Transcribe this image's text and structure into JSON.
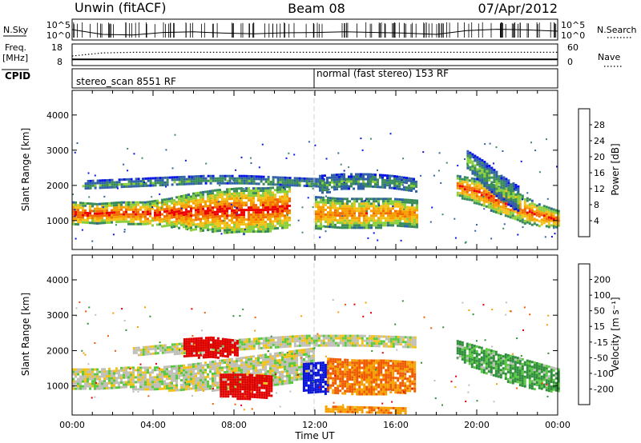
{
  "header": {
    "station": "Unwin (fitACF)",
    "beam": "Beam 08",
    "date": "07/Apr/2012"
  },
  "summary": {
    "nsky_label": "N.Sky",
    "nsearch_label": "N.Search",
    "nsky_ticks": [
      "10^5",
      "10^0"
    ],
    "freq_label_1": "Freq.",
    "freq_label_2": "[MHz]",
    "freq_ticks": [
      "18",
      "8"
    ],
    "nave_label": "Nave",
    "nave_ticks": [
      "60",
      "0"
    ],
    "cpid_label": "CPID",
    "cpid_segments": [
      {
        "label": "stereo_scan 8551 RF",
        "start": "00:00",
        "end": "12:00"
      },
      {
        "label": "normal (fast stereo) 153 RF",
        "start": "12:00",
        "end": "24:00"
      }
    ]
  },
  "colors": {
    "power_scale": [
      "#0a14e6",
      "#3060a8",
      "#3a8c5a",
      "#8ccf3c",
      "#f2c21a",
      "#f5a000",
      "#f26a00",
      "#ee0000"
    ],
    "velocity_scale": [
      "#e00000",
      "#f05a00",
      "#f5a000",
      "#f2c21a",
      "#bfbfb8",
      "#bfbfb8",
      "#5ac840",
      "#2f8f3a",
      "#1e3fa6",
      "#0a14d8"
    ],
    "background": "#ffffff"
  },
  "chart_data": [
    {
      "type": "line",
      "name": "summary-nsky-nsearch",
      "xlabel": "",
      "ylabel": "N.Sky",
      "ylim_log10": [
        0,
        5
      ],
      "x_hours": [
        0,
        1.5,
        3,
        4.5,
        6,
        7.5,
        9,
        10.5,
        12,
        13.5,
        15,
        16.5,
        18,
        19.5,
        21,
        22.5,
        24
      ],
      "series": [
        {
          "name": "N.Sky",
          "values_log10": [
            2.5,
            1.0,
            0.8,
            1.6,
            1.8,
            1.4,
            1.2,
            1.5,
            1.6,
            1.8,
            1.6,
            1.4,
            1.0,
            2.2,
            2.6,
            2.4,
            2.0
          ]
        },
        {
          "name": "N.Search",
          "values_log10": [
            4.5,
            4.5,
            4.5,
            4.5,
            4.5,
            4.5,
            4.5,
            4.5,
            4.5,
            4.5,
            4.5,
            4.5,
            4.5,
            4.5,
            4.5,
            4.5,
            4.5
          ]
        }
      ]
    },
    {
      "type": "line",
      "name": "summary-freq-nave",
      "ylabel": "Freq. [MHz]",
      "ylim": [
        8,
        18
      ],
      "x_hours": [
        0,
        1.5,
        3,
        4.5,
        6,
        7.5,
        9,
        10.5,
        12,
        13.5,
        15,
        16.5,
        18,
        19.5,
        21,
        22.5,
        24
      ],
      "series": [
        {
          "name": "Freq.",
          "values": [
            10.5,
            10.5,
            10.5,
            10.5,
            10.5,
            10.5,
            10.5,
            10.5,
            10.5,
            10.5,
            10.5,
            10.5,
            10.5,
            10.5,
            10.5,
            10.5,
            10.5
          ]
        },
        {
          "name": "Nave",
          "values": [
            26,
            36,
            38,
            38,
            38,
            38,
            38,
            38,
            38,
            38,
            38,
            38,
            38,
            38,
            38,
            38,
            38
          ]
        }
      ]
    },
    {
      "type": "heatmap",
      "name": "power",
      "xlabel": "",
      "ylabel": "Slant Range [km]",
      "xlim_hours": [
        0,
        24
      ],
      "ylim": [
        180,
        4700
      ],
      "yticks": [
        "1000",
        "2000",
        "3000",
        "4000"
      ],
      "colorbar_label": "Power [dB]",
      "colorbar_ticks": [
        "4",
        "8",
        "12",
        "16",
        "20",
        "24",
        "28"
      ],
      "clim": [
        0,
        30
      ],
      "bands": [
        {
          "t0": 0.0,
          "t1": 10.7,
          "r": [
            [
              900,
              1550
            ],
            [
              950,
              1500
            ],
            [
              950,
              1550
            ],
            [
              900,
              1550
            ],
            [
              850,
              1650
            ],
            [
              750,
              1800
            ],
            [
              700,
              1900
            ],
            [
              650,
              1950
            ],
            [
              700,
              1950
            ],
            [
              850,
              2000
            ]
          ],
          "peak": 26
        },
        {
          "t0": 0.5,
          "t1": 12.5,
          "r": [
            [
              1900,
              2150
            ],
            [
              1950,
              2200
            ],
            [
              2000,
              2250
            ],
            [
              2050,
              2300
            ],
            [
              2050,
              2300
            ],
            [
              2000,
              2250
            ],
            [
              1950,
              2200
            ]
          ],
          "peak": 10
        },
        {
          "t0": 12.0,
          "t1": 17.0,
          "r": [
            [
              800,
              1700
            ],
            [
              800,
              1650
            ],
            [
              800,
              1650
            ],
            [
              850,
              1650
            ],
            [
              850,
              1600
            ]
          ],
          "peak": 22
        },
        {
          "t0": 12.2,
          "t1": 17.0,
          "r": [
            [
              1800,
              2300
            ],
            [
              1900,
              2350
            ],
            [
              1950,
              2350
            ],
            [
              1900,
              2300
            ],
            [
              1800,
              2200
            ]
          ],
          "peak": 10
        },
        {
          "t0": 19.0,
          "t1": 24.0,
          "r": [
            [
              1700,
              2300
            ],
            [
              1500,
              2200
            ],
            [
              1200,
              2000
            ],
            [
              1000,
              1800
            ],
            [
              850,
              1500
            ],
            [
              800,
              1300
            ]
          ],
          "peak": 24
        },
        {
          "t0": 19.5,
          "t1": 22.0,
          "r": [
            [
              2500,
              3000
            ],
            [
              2000,
              2700
            ],
            [
              1600,
              2300
            ],
            [
              1300,
              2000
            ]
          ],
          "peak": 12
        }
      ]
    },
    {
      "type": "heatmap",
      "name": "velocity",
      "xlabel": "Time UT",
      "ylabel": "Slant Range [km]",
      "xlim_hours": [
        0,
        24
      ],
      "ylim": [
        180,
        4700
      ],
      "xticks": [
        "00:00",
        "04:00",
        "08:00",
        "12:00",
        "16:00",
        "20:00",
        "00:00"
      ],
      "yticks": [
        "1000",
        "2000",
        "3000",
        "4000"
      ],
      "colorbar_label": "Velocity [m s⁻¹]",
      "colorbar_ticks": [
        "200",
        "100",
        "50",
        "15",
        "-15",
        "-50",
        "-100",
        "-200"
      ],
      "clim": [
        -250,
        250
      ],
      "bands": [
        {
          "t0": 0.0,
          "t1": 12.0,
          "r": [
            [
              950,
              1500
            ],
            [
              950,
              1500
            ],
            [
              950,
              1550
            ],
            [
              900,
              1550
            ],
            [
              900,
              1600
            ],
            [
              900,
              1700
            ],
            [
              900,
              1800
            ],
            [
              1000,
              1900
            ],
            [
              1100,
              2000
            ],
            [
              1300,
              2100
            ]
          ],
          "v": 0
        },
        {
          "t0": 3.0,
          "t1": 17.0,
          "r": [
            [
              1900,
              2100
            ],
            [
              1950,
              2250
            ],
            [
              2050,
              2350
            ],
            [
              2150,
              2450
            ],
            [
              2150,
              2450
            ],
            [
              2100,
              2400
            ]
          ],
          "v": 0
        },
        {
          "t0": 7.3,
          "t1": 9.8,
          "r": [
            [
              700,
              1350
            ],
            [
              650,
              1350
            ],
            [
              700,
              1300
            ]
          ],
          "v": -200
        },
        {
          "t0": 5.5,
          "t1": 8.2,
          "r": [
            [
              1850,
              2350
            ],
            [
              1800,
              2400
            ],
            [
              1900,
              2300
            ]
          ],
          "v": -200
        },
        {
          "t0": 11.4,
          "t1": 12.6,
          "r": [
            [
              850,
              1650
            ],
            [
              800,
              1700
            ]
          ],
          "v": 200
        },
        {
          "t0": 12.6,
          "t1": 16.9,
          "r": [
            [
              800,
              1800
            ],
            [
              800,
              1750
            ],
            [
              800,
              1750
            ],
            [
              850,
              1700
            ]
          ],
          "v": -80
        },
        {
          "t0": 19.0,
          "t1": 24.0,
          "r": [
            [
              1800,
              2300
            ],
            [
              1400,
              2100
            ],
            [
              1150,
              1900
            ],
            [
              950,
              1700
            ],
            [
              850,
              1500
            ]
          ],
          "v": 40
        },
        {
          "t0": 12.5,
          "t1": 16.5,
          "r": [
            [
              250,
              450
            ],
            [
              250,
              400
            ]
          ],
          "v": -60
        }
      ]
    }
  ]
}
